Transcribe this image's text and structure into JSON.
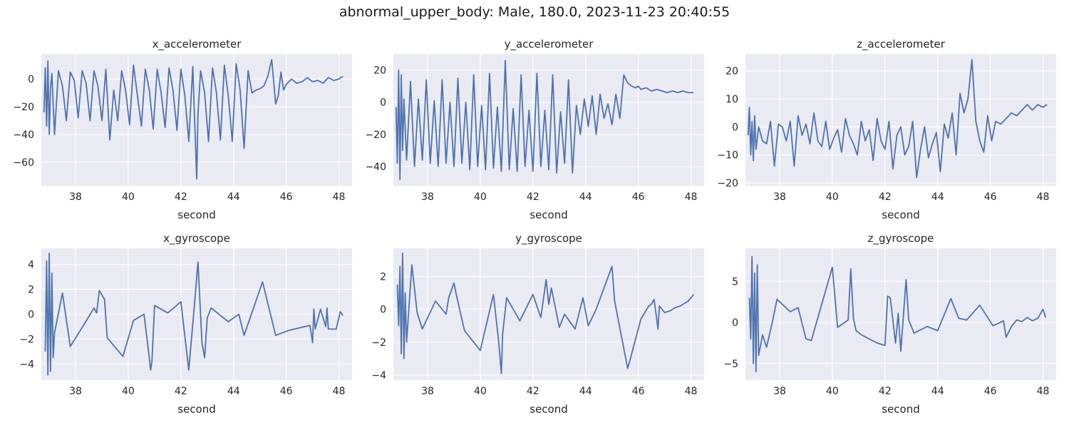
{
  "figure": {
    "suptitle": "abnormal_upper_body: Male, 180.0, 2023-11-23 20:40:55"
  },
  "style": {
    "background": "#eaeaf2",
    "grid": "#ffffff",
    "line_color": "#4c72b0"
  },
  "chart_data": [
    {
      "type": "line",
      "title": "x_accelerometer",
      "xlabel": "second",
      "ylabel": "",
      "xlim": [
        36.7,
        48.5
      ],
      "ylim": [
        -77,
        18
      ],
      "xticks": [
        38,
        40,
        42,
        44,
        46,
        48
      ],
      "yticks": [
        -60,
        -40,
        -20,
        0
      ],
      "grid": true,
      "x": [
        36.8,
        36.85,
        36.9,
        36.95,
        37.0,
        37.05,
        37.1,
        37.2,
        37.35,
        37.5,
        37.65,
        37.8,
        37.95,
        38.1,
        38.25,
        38.4,
        38.55,
        38.7,
        38.85,
        39.0,
        39.15,
        39.3,
        39.45,
        39.6,
        39.75,
        39.9,
        40.05,
        40.2,
        40.35,
        40.5,
        40.65,
        40.8,
        40.95,
        41.1,
        41.25,
        41.4,
        41.55,
        41.7,
        41.85,
        42.0,
        42.15,
        42.3,
        42.45,
        42.6,
        42.65,
        42.75,
        42.9,
        43.05,
        43.2,
        43.35,
        43.5,
        43.65,
        43.8,
        43.95,
        44.1,
        44.25,
        44.4,
        44.55,
        44.7,
        44.85,
        45.0,
        45.15,
        45.3,
        45.45,
        45.6,
        45.7,
        45.8,
        45.9,
        46.0,
        46.2,
        46.4,
        46.6,
        46.8,
        47.0,
        47.2,
        47.4,
        47.6,
        47.8,
        48.0,
        48.15
      ],
      "y": [
        -24,
        8,
        -34,
        13,
        -40,
        -6,
        4,
        -40,
        6,
        -5,
        -30,
        5,
        -1,
        -28,
        6,
        -3,
        -30,
        6,
        -5,
        -30,
        7,
        -44,
        -8,
        -30,
        6,
        -8,
        -33,
        10,
        -12,
        -34,
        7,
        -8,
        -36,
        7,
        -10,
        -35,
        8,
        -8,
        -37,
        7,
        -12,
        -45,
        9,
        -72,
        -25,
        6,
        -10,
        -45,
        8,
        -10,
        -44,
        10,
        -12,
        -45,
        11,
        -8,
        -50,
        6,
        -10,
        -8,
        -7,
        -5,
        2,
        14,
        -18,
        -12,
        5,
        -8,
        -4,
        0,
        -3,
        -2,
        1,
        -2,
        -1,
        -3,
        1,
        -1,
        0,
        2
      ]
    },
    {
      "type": "line",
      "title": "y_accelerometer",
      "xlabel": "second",
      "ylabel": "",
      "xlim": [
        36.7,
        48.5
      ],
      "ylim": [
        -52,
        30
      ],
      "xticks": [
        38,
        40,
        42,
        44,
        46,
        48
      ],
      "yticks": [
        -40,
        -20,
        0,
        20
      ],
      "grid": true,
      "x": [
        36.8,
        36.85,
        36.9,
        36.95,
        37.0,
        37.05,
        37.1,
        37.2,
        37.35,
        37.5,
        37.65,
        37.8,
        37.95,
        38.1,
        38.25,
        38.4,
        38.55,
        38.7,
        38.85,
        39.0,
        39.15,
        39.3,
        39.45,
        39.6,
        39.75,
        39.9,
        40.05,
        40.2,
        40.35,
        40.5,
        40.65,
        40.8,
        40.95,
        41.1,
        41.25,
        41.4,
        41.55,
        41.7,
        41.85,
        42.0,
        42.15,
        42.3,
        42.45,
        42.6,
        42.75,
        42.9,
        43.05,
        43.2,
        43.35,
        43.5,
        43.65,
        43.8,
        43.95,
        44.1,
        44.25,
        44.4,
        44.55,
        44.7,
        44.85,
        45.0,
        45.15,
        45.3,
        45.45,
        45.6,
        45.75,
        45.9,
        46.0,
        46.1,
        46.3,
        46.5,
        46.7,
        46.9,
        47.1,
        47.3,
        47.5,
        47.7,
        47.9,
        48.1
      ],
      "y": [
        -3,
        -38,
        20,
        -48,
        17,
        -30,
        2,
        -36,
        13,
        -40,
        2,
        -36,
        14,
        -38,
        1,
        -40,
        14,
        -38,
        0,
        -40,
        15,
        -38,
        0,
        -42,
        17,
        -40,
        -2,
        -42,
        18,
        -41,
        -3,
        -43,
        26,
        -42,
        -4,
        -43,
        17,
        -40,
        -5,
        -43,
        18,
        -40,
        -5,
        -42,
        17,
        -44,
        -6,
        -38,
        14,
        -44,
        -2,
        -20,
        2,
        -15,
        4,
        -20,
        5,
        -10,
        -1,
        -14,
        5,
        -10,
        17,
        12,
        10,
        9,
        10,
        8,
        9,
        7,
        8,
        7,
        6,
        7,
        6,
        7,
        6,
        6
      ]
    },
    {
      "type": "line",
      "title": "z_accelerometer",
      "xlabel": "second",
      "ylabel": "",
      "xlim": [
        36.7,
        48.5
      ],
      "ylim": [
        -21,
        26
      ],
      "xticks": [
        38,
        40,
        42,
        44,
        46,
        48
      ],
      "yticks": [
        -20,
        -10,
        0,
        10,
        20
      ],
      "grid": true,
      "x": [
        36.8,
        36.85,
        36.9,
        36.95,
        37.0,
        37.05,
        37.1,
        37.2,
        37.35,
        37.5,
        37.65,
        37.8,
        37.95,
        38.1,
        38.25,
        38.4,
        38.55,
        38.7,
        38.85,
        39.0,
        39.15,
        39.3,
        39.45,
        39.6,
        39.75,
        39.9,
        40.05,
        40.2,
        40.35,
        40.5,
        40.65,
        40.8,
        40.95,
        41.1,
        41.25,
        41.4,
        41.55,
        41.7,
        41.85,
        42.0,
        42.15,
        42.3,
        42.45,
        42.6,
        42.75,
        42.9,
        43.05,
        43.2,
        43.35,
        43.5,
        43.65,
        43.8,
        43.95,
        44.1,
        44.25,
        44.4,
        44.55,
        44.7,
        44.85,
        45.0,
        45.15,
        45.3,
        45.45,
        45.6,
        45.75,
        45.9,
        46.05,
        46.2,
        46.4,
        46.6,
        46.8,
        47.0,
        47.2,
        47.4,
        47.6,
        47.8,
        48.0,
        48.15
      ],
      "y": [
        -3,
        7,
        -10,
        2,
        -12,
        4,
        -8,
        0,
        -5,
        -6,
        2,
        -14,
        1,
        0,
        -5,
        2,
        -14,
        4,
        -3,
        1,
        -6,
        5,
        -5,
        -7,
        2,
        -8,
        -4,
        -1,
        -9,
        3,
        -3,
        -6,
        -10,
        2,
        -5,
        -1,
        -12,
        3,
        -5,
        -8,
        2,
        -15,
        -3,
        0,
        -10,
        -7,
        2,
        -18,
        -8,
        0,
        -11,
        -6,
        -2,
        -16,
        1,
        -4,
        5,
        -10,
        12,
        5,
        10,
        24,
        2,
        -5,
        -9,
        4,
        -5,
        2,
        1,
        3,
        5,
        4,
        6,
        8,
        6,
        8,
        7,
        8
      ]
    },
    {
      "type": "line",
      "title": "x_gyroscope",
      "xlabel": "second",
      "ylabel": "",
      "xlim": [
        36.7,
        48.5
      ],
      "ylim": [
        -5.3,
        5.3
      ],
      "xticks": [
        38,
        40,
        42,
        44,
        46,
        48
      ],
      "yticks": [
        -4,
        -2,
        0,
        2,
        4
      ],
      "grid": true,
      "x": [
        36.85,
        36.9,
        36.95,
        37.0,
        37.05,
        37.1,
        37.15,
        37.2,
        37.5,
        37.8,
        38.3,
        38.7,
        38.8,
        38.9,
        39.1,
        39.2,
        39.8,
        40.2,
        40.6,
        40.8,
        40.85,
        40.9,
        41.0,
        41.5,
        42.0,
        42.3,
        42.5,
        42.65,
        42.8,
        42.9,
        43.0,
        43.15,
        43.8,
        44.2,
        44.4,
        45.1,
        45.6,
        46.1,
        46.9,
        47.0,
        47.05,
        47.1,
        47.3,
        47.5,
        47.55,
        47.6,
        47.9,
        48.05,
        48.15
      ],
      "y": [
        -3,
        4.3,
        -4.9,
        4.9,
        -4.6,
        3.3,
        -3.5,
        -1.5,
        1.7,
        -2.6,
        -0.9,
        0.5,
        0.1,
        1.9,
        1.2,
        -1.9,
        -3.4,
        -0.5,
        0,
        -3.5,
        -4.5,
        -3.8,
        0.7,
        0.1,
        1.0,
        -4.5,
        0.4,
        4.2,
        -2.3,
        -3.5,
        -0.3,
        0.5,
        -0.6,
        0,
        -1.7,
        2.6,
        -1.7,
        -1.3,
        -0.9,
        -2.3,
        0.4,
        -1.2,
        0.4,
        -1,
        0.5,
        -1.2,
        -1.2,
        0.2,
        -0.1
      ]
    },
    {
      "type": "line",
      "title": "y_gyroscope",
      "xlabel": "second",
      "ylabel": "",
      "xlim": [
        36.7,
        48.5
      ],
      "ylim": [
        -4.3,
        3.7
      ],
      "xticks": [
        38,
        40,
        42,
        44,
        46,
        48
      ],
      "yticks": [
        -4,
        -2,
        0,
        2
      ],
      "grid": true,
      "x": [
        36.85,
        36.9,
        36.95,
        37.0,
        37.05,
        37.1,
        37.15,
        37.2,
        37.4,
        37.6,
        37.8,
        38.3,
        38.7,
        38.8,
        39.0,
        39.1,
        39.4,
        40.0,
        40.5,
        40.7,
        40.8,
        40.85,
        41.0,
        41.5,
        42.0,
        42.3,
        42.5,
        42.6,
        42.7,
        43.0,
        43.2,
        43.6,
        43.9,
        44.1,
        44.4,
        45.0,
        45.1,
        45.6,
        46.1,
        46.4,
        46.5,
        46.6,
        46.75,
        46.8,
        47.0,
        47.2,
        47.4,
        47.6,
        47.9,
        48.1
      ],
      "y": [
        1.5,
        -1,
        2.6,
        -2.7,
        3.4,
        -3,
        1.0,
        -2.0,
        2.7,
        -0.2,
        -1.2,
        0.5,
        -0.3,
        0.7,
        1.6,
        0.8,
        -1.3,
        -2.5,
        0.9,
        -2.0,
        -3.9,
        -1.5,
        0.7,
        -0.7,
        0.9,
        -0.5,
        1.8,
        0.3,
        1.3,
        -1.1,
        -0.3,
        -1.2,
        0.7,
        -1,
        0,
        2.6,
        0.5,
        -3.6,
        -0.6,
        0.2,
        0.3,
        0.6,
        -1.2,
        0.2,
        -0.2,
        -0.1,
        0.1,
        0.2,
        0.5,
        0.9
      ]
    },
    {
      "type": "line",
      "title": "z_gyroscope",
      "xlabel": "second",
      "ylabel": "",
      "xlim": [
        36.7,
        48.5
      ],
      "ylim": [
        -7,
        9
      ],
      "xticks": [
        38,
        40,
        42,
        44,
        46,
        48
      ],
      "yticks": [
        -5,
        0,
        5
      ],
      "grid": true,
      "x": [
        36.85,
        36.9,
        36.95,
        37.0,
        37.05,
        37.1,
        37.15,
        37.2,
        37.35,
        37.5,
        37.7,
        37.9,
        38.4,
        38.7,
        38.8,
        39.0,
        39.2,
        40.0,
        40.2,
        40.6,
        40.7,
        40.8,
        40.9,
        41.1,
        41.7,
        42.0,
        42.1,
        42.2,
        42.4,
        42.5,
        42.6,
        42.8,
        42.9,
        43.1,
        43.6,
        44.0,
        44.5,
        44.8,
        45.1,
        45.6,
        46.1,
        46.5,
        46.6,
        46.8,
        47.0,
        47.2,
        47.4,
        47.6,
        47.8,
        48.0,
        48.1
      ],
      "y": [
        3,
        -2,
        8,
        -5,
        6,
        -6,
        7,
        -4,
        -1.5,
        -3,
        -0.3,
        2.8,
        1.3,
        1.8,
        0.5,
        -2,
        -2.2,
        6.7,
        -0.6,
        0.3,
        6.5,
        0.5,
        -1.0,
        -1.5,
        -2.5,
        -2.8,
        3.2,
        3,
        -2.5,
        1.1,
        -3.5,
        5.2,
        0.3,
        -1.3,
        -0.5,
        -1.0,
        2.9,
        0.5,
        0.3,
        2.1,
        -0.4,
        0.2,
        -1.8,
        -0.5,
        0.3,
        0.1,
        0.6,
        0.2,
        0.5,
        1.6,
        0.6
      ]
    }
  ]
}
